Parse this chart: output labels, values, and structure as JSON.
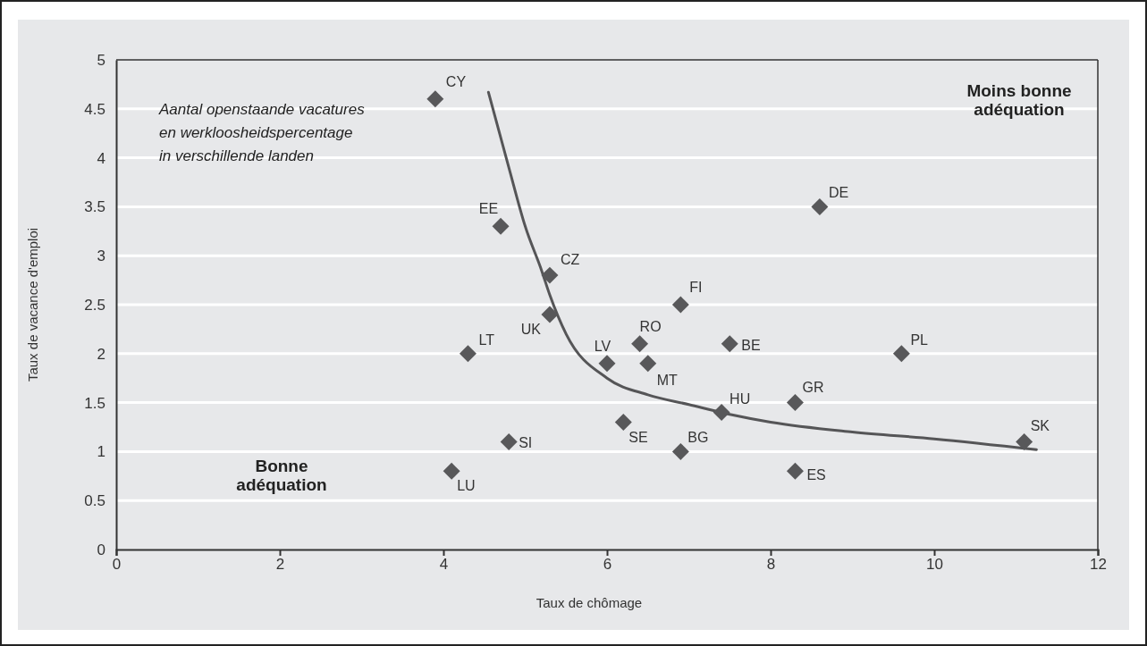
{
  "chart_data": {
    "type": "scatter",
    "xlabel": "Taux de chômage",
    "ylabel": "Taux de vacance d'emploi",
    "annotations": [
      "Aantal openstaande vacatures\nen werkloosheidspercentage\nin verschillende landen",
      "Moins bonne\nadéquation",
      "Bonne\nadéquation"
    ],
    "series": [
      {
        "color": "#58585a",
        "x": [
          3.9,
          4.7,
          5.3,
          5.3,
          4.3,
          6.0,
          6.4,
          6.5,
          6.9,
          7.5,
          8.6,
          9.6,
          8.3,
          7.4,
          6.2,
          6.9,
          8.3,
          11.1,
          4.8,
          4.1
        ],
        "values": [
          4.6,
          3.3,
          2.8,
          2.4,
          2.0,
          1.9,
          2.1,
          1.9,
          2.5,
          2.1,
          3.5,
          2.0,
          1.5,
          1.4,
          1.3,
          1.0,
          0.8,
          1.1,
          1.1,
          0.8
        ],
        "value_labels": [
          "CY",
          "EE",
          "CZ",
          "UK",
          "LT",
          "LV",
          "RO",
          "MT",
          "FI",
          "BE",
          "DE",
          "PL",
          "GR",
          "HU",
          "SE",
          "BG",
          "ES",
          "SK",
          "SI",
          "LU"
        ]
      },
      {
        "type": "line",
        "marker": "none",
        "color": "#555557",
        "x": [
          4.55,
          4.8,
          5.0,
          5.2,
          5.3,
          5.5,
          6.0,
          6.5,
          7.0,
          7.5,
          8.0,
          9.0,
          10.0,
          11.25
        ],
        "values": [
          4.67,
          3.9,
          3.3,
          2.85,
          2.6,
          2.2,
          1.75,
          1.58,
          1.48,
          1.38,
          1.3,
          1.2,
          1.13,
          1.02
        ]
      }
    ],
    "xlim": [
      0,
      12
    ],
    "xticks": [
      0,
      2,
      4,
      6,
      8,
      10,
      12
    ],
    "ylim": [
      0,
      5
    ],
    "yticks": [
      0,
      0.5,
      1,
      1.5,
      2,
      2.5,
      3,
      3.5,
      4,
      4.5,
      5
    ],
    "grid": "y",
    "marker": "diamond",
    "line_style": "solid"
  }
}
